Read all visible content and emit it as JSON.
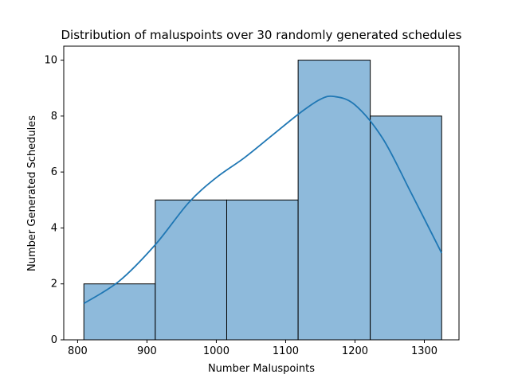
{
  "chart_data": {
    "type": "bar",
    "title": "Distribution of maluspoints over 30 randomly generated schedules",
    "xlabel": "Number Maluspoints",
    "ylabel": "Number Generated Schedules",
    "xlim": [
      780,
      1350
    ],
    "ylim": [
      0,
      10.5
    ],
    "xticks": [
      800,
      900,
      1000,
      1100,
      1200,
      1300
    ],
    "yticks": [
      0,
      2,
      4,
      6,
      8,
      10
    ],
    "bins": [
      {
        "x0": 809,
        "x1": 912,
        "count": 2
      },
      {
        "x0": 912,
        "x1": 1015,
        "count": 5
      },
      {
        "x0": 1015,
        "x1": 1118,
        "count": 5
      },
      {
        "x0": 1118,
        "x1": 1222,
        "count": 10
      },
      {
        "x0": 1222,
        "x1": 1325,
        "count": 8
      }
    ],
    "kde": {
      "x": [
        809,
        860,
        912,
        960,
        1000,
        1040,
        1080,
        1120,
        1150,
        1170,
        1200,
        1240,
        1280,
        1325
      ],
      "y": [
        1.3,
        2.1,
        3.4,
        4.9,
        5.8,
        6.5,
        7.3,
        8.1,
        8.6,
        8.7,
        8.4,
        7.2,
        5.3,
        3.1
      ]
    },
    "colors": {
      "bar_fill": "#8ebadb",
      "bar_edge": "#000000",
      "kde_line": "#1f77b4"
    }
  }
}
